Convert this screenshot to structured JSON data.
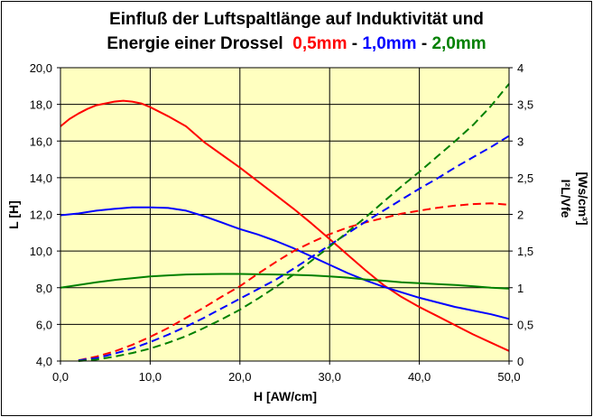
{
  "title": {
    "line1": "Einfluß der Luftspaltlänge auf Induktivität und",
    "line2_prefix": "Energie einer Drossel",
    "red_label": "0,5mm",
    "sep1": "-",
    "blue_label": "1,0mm",
    "sep2": "-",
    "green_label": "2,0mm"
  },
  "chart_data": {
    "type": "line",
    "xlabel": "H [AW/cm]",
    "ylabel_left": "L [H]",
    "ylabel_right_line1": "I²L/Vfe",
    "ylabel_right_line2": "[Ws/cm³]",
    "xlim": [
      0,
      50
    ],
    "ylim_left": [
      4,
      20
    ],
    "ylim_right": [
      0,
      4
    ],
    "x_ticks": [
      "0,0",
      "10,0",
      "20,0",
      "30,0",
      "40,0",
      "50,0"
    ],
    "y_left_ticks": [
      "4,0",
      "6,0",
      "8,0",
      "10,0",
      "12,0",
      "14,0",
      "16,0",
      "18,0",
      "20,0"
    ],
    "y_right_ticks": [
      "0",
      "0,5",
      "1",
      "1,5",
      "2",
      "2,5",
      "3",
      "3,5",
      "4"
    ],
    "grid": true,
    "plot_background": "#ffffc0",
    "colors": {
      "red": "#ff0000",
      "blue": "#0000ff",
      "green": "#008000"
    },
    "series": [
      {
        "axis": "left",
        "style": "solid",
        "color": "#ff0000",
        "x": [
          0,
          1,
          2,
          3,
          4,
          5,
          6,
          7,
          8,
          9,
          10,
          12,
          14,
          16,
          18,
          20,
          22,
          24,
          26,
          28,
          30,
          32,
          34,
          36,
          38,
          40,
          42,
          44,
          46,
          48,
          50
        ],
        "y": [
          16.8,
          17.2,
          17.5,
          17.75,
          17.95,
          18.05,
          18.15,
          18.2,
          18.15,
          18.05,
          17.85,
          17.35,
          16.8,
          15.95,
          15.25,
          14.55,
          13.8,
          13.05,
          12.3,
          11.5,
          10.65,
          9.8,
          8.95,
          8.15,
          7.5,
          6.95,
          6.45,
          5.95,
          5.45,
          5.0,
          4.55
        ]
      },
      {
        "axis": "left",
        "style": "solid",
        "color": "#0000ff",
        "x": [
          0,
          2,
          4,
          6,
          8,
          10,
          12,
          14,
          16,
          18,
          20,
          22,
          24,
          26,
          28,
          30,
          32,
          34,
          36,
          38,
          40,
          42,
          44,
          46,
          48,
          50
        ],
        "y": [
          11.95,
          12.05,
          12.2,
          12.3,
          12.38,
          12.38,
          12.35,
          12.2,
          11.9,
          11.55,
          11.2,
          10.9,
          10.55,
          10.15,
          9.7,
          9.25,
          8.8,
          8.4,
          8.05,
          7.75,
          7.45,
          7.2,
          6.95,
          6.75,
          6.55,
          6.3
        ]
      },
      {
        "axis": "left",
        "style": "solid",
        "color": "#008000",
        "x": [
          0,
          2,
          4,
          6,
          8,
          10,
          12,
          14,
          16,
          18,
          20,
          22,
          24,
          26,
          28,
          30,
          32,
          34,
          36,
          38,
          40,
          42,
          44,
          46,
          48,
          50
        ],
        "y": [
          8.0,
          8.15,
          8.3,
          8.42,
          8.52,
          8.62,
          8.67,
          8.72,
          8.74,
          8.75,
          8.75,
          8.73,
          8.72,
          8.7,
          8.67,
          8.62,
          8.55,
          8.45,
          8.38,
          8.3,
          8.25,
          8.2,
          8.15,
          8.08,
          8.0,
          7.95
        ]
      },
      {
        "axis": "right",
        "style": "dashed",
        "color": "#ff0000",
        "x": [
          2,
          4,
          6,
          8,
          10,
          12,
          14,
          16,
          18,
          20,
          22,
          24,
          26,
          28,
          30,
          32,
          34,
          36,
          38,
          40,
          42,
          44,
          46,
          48,
          50
        ],
        "y": [
          0.01,
          0.06,
          0.13,
          0.22,
          0.33,
          0.45,
          0.59,
          0.73,
          0.88,
          1.02,
          1.19,
          1.35,
          1.5,
          1.62,
          1.73,
          1.82,
          1.89,
          1.95,
          2.01,
          2.05,
          2.09,
          2.12,
          2.14,
          2.15,
          2.13
        ]
      },
      {
        "axis": "right",
        "style": "dashed",
        "color": "#0000ff",
        "x": [
          2,
          4,
          6,
          8,
          10,
          12,
          14,
          16,
          18,
          20,
          22,
          24,
          26,
          28,
          30,
          32,
          34,
          36,
          38,
          40,
          42,
          44,
          46,
          48,
          50
        ],
        "y": [
          0.01,
          0.04,
          0.1,
          0.17,
          0.26,
          0.36,
          0.47,
          0.59,
          0.72,
          0.85,
          0.98,
          1.11,
          1.26,
          1.42,
          1.58,
          1.74,
          1.9,
          2.05,
          2.2,
          2.35,
          2.49,
          2.64,
          2.78,
          2.92,
          3.07
        ]
      },
      {
        "axis": "right",
        "style": "dashed",
        "color": "#008000",
        "x": [
          2,
          4,
          6,
          8,
          10,
          12,
          14,
          16,
          18,
          20,
          22,
          24,
          26,
          28,
          30,
          32,
          34,
          36,
          38,
          40,
          42,
          44,
          46,
          48,
          50
        ],
        "y": [
          0.0,
          0.02,
          0.06,
          0.11,
          0.17,
          0.25,
          0.34,
          0.45,
          0.57,
          0.7,
          0.85,
          1.01,
          1.18,
          1.37,
          1.56,
          1.76,
          1.96,
          2.17,
          2.38,
          2.58,
          2.79,
          3.0,
          3.22,
          3.48,
          3.78
        ]
      }
    ]
  }
}
